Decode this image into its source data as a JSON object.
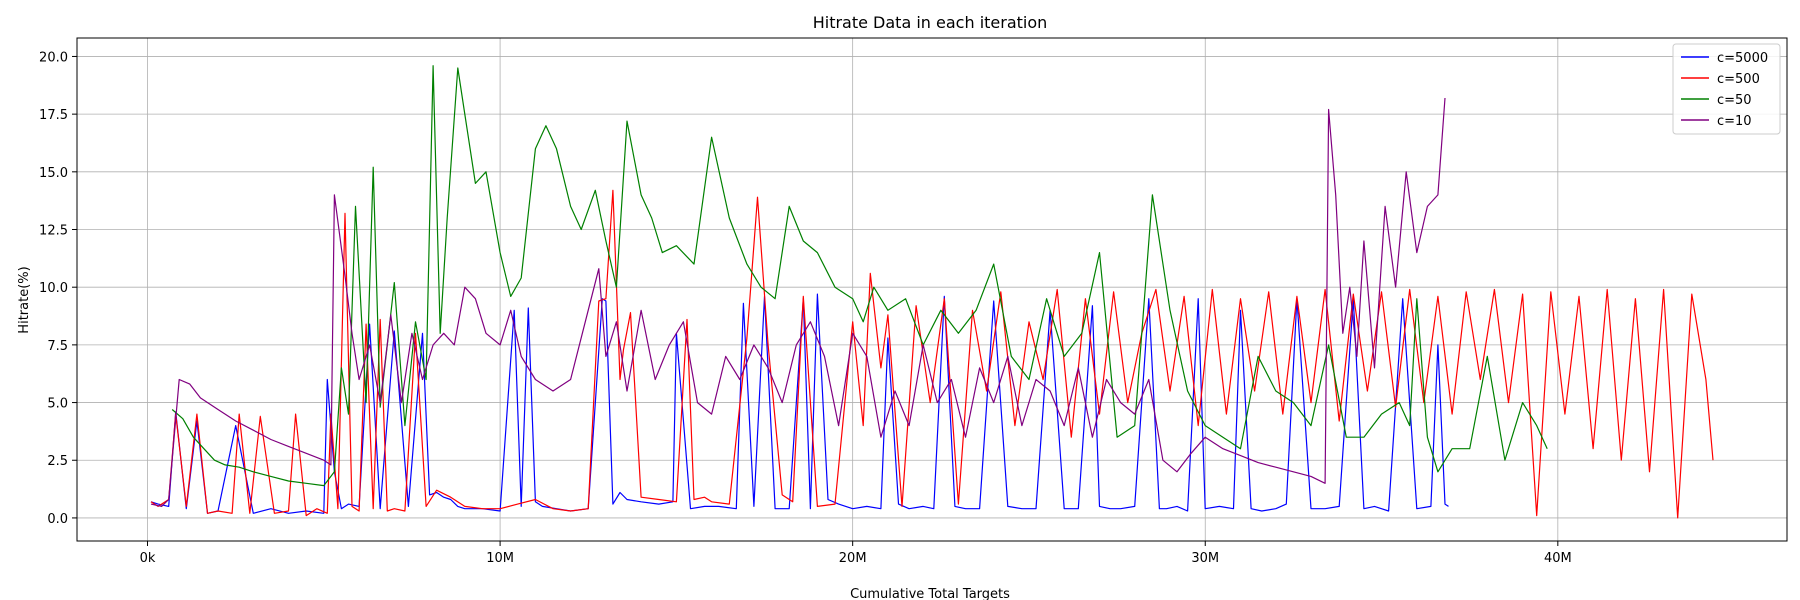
{
  "chart_data": {
    "type": "line",
    "title": "Hitrate Data in each iteration",
    "xlabel": "Cumulative Total Targets",
    "ylabel": "Hitrate(%)",
    "xlim": [
      -2.0,
      46.5
    ],
    "ylim": [
      -1.0,
      20.8
    ],
    "x_unit": "millions of targets",
    "x_ticks": [
      {
        "value": 0,
        "label": "0k"
      },
      {
        "value": 10,
        "label": "10M"
      },
      {
        "value": 20,
        "label": "20M"
      },
      {
        "value": 30,
        "label": "30M"
      },
      {
        "value": 40,
        "label": "40M"
      }
    ],
    "y_ticks": [
      {
        "value": 0,
        "label": "0.0"
      },
      {
        "value": 2.5,
        "label": "2.5"
      },
      {
        "value": 5,
        "label": "5.0"
      },
      {
        "value": 7.5,
        "label": "7.5"
      },
      {
        "value": 10,
        "label": "10.0"
      },
      {
        "value": 12.5,
        "label": "12.5"
      },
      {
        "value": 15,
        "label": "15.0"
      },
      {
        "value": 17.5,
        "label": "17.5"
      },
      {
        "value": 20,
        "label": "20.0"
      }
    ],
    "grid": true,
    "legend_position": "top-right",
    "series": [
      {
        "name": "c=5000",
        "color": "#0000ff",
        "x": [
          0.1,
          0.3,
          0.6,
          0.8,
          1.1,
          1.4,
          1.7,
          2.0,
          2.5,
          3.0,
          3.5,
          4.0,
          4.5,
          5.0,
          5.1,
          5.3,
          5.5,
          5.7,
          6.0,
          6.3,
          6.6,
          7.0,
          7.4,
          7.8,
          8.0,
          8.2,
          8.4,
          8.6,
          8.8,
          9.0,
          9.5,
          10.0,
          10.4,
          10.6,
          10.8,
          11.0,
          11.2,
          11.6,
          12.0,
          12.5,
          12.9,
          13.0,
          13.2,
          13.4,
          13.6,
          14.0,
          14.5,
          14.9,
          15.0,
          15.4,
          15.8,
          16.2,
          16.7,
          16.9,
          17.2,
          17.5,
          17.8,
          18.2,
          18.6,
          18.8,
          19.0,
          19.3,
          19.6,
          20.0,
          20.4,
          20.8,
          21.0,
          21.3,
          21.6,
          22.0,
          22.3,
          22.6,
          22.9,
          23.2,
          23.6,
          24.0,
          24.4,
          24.8,
          25.2,
          25.6,
          26.0,
          26.4,
          26.8,
          27.0,
          27.3,
          27.6,
          28.0,
          28.4,
          28.7,
          28.9,
          29.2,
          29.5,
          29.8,
          30.0,
          30.4,
          30.8,
          31.0,
          31.3,
          31.6,
          32.0,
          32.3,
          32.6,
          33.0,
          33.4,
          33.8,
          34.2,
          34.5,
          34.8,
          35.2,
          35.6,
          36.0,
          36.4,
          36.6,
          36.8,
          36.9
        ],
        "y": [
          0.7,
          0.6,
          0.5,
          4.6,
          0.4,
          4.2,
          0.2,
          0.3,
          4.0,
          0.2,
          0.4,
          0.2,
          0.3,
          0.2,
          6.0,
          2.0,
          0.4,
          0.6,
          0.5,
          8.4,
          0.4,
          8.1,
          0.5,
          8.0,
          1.0,
          1.1,
          0.9,
          0.8,
          0.5,
          0.4,
          0.4,
          0.3,
          9.0,
          0.5,
          9.1,
          0.7,
          0.5,
          0.4,
          0.3,
          0.4,
          9.5,
          9.4,
          0.6,
          1.1,
          0.8,
          0.7,
          0.6,
          0.7,
          8.0,
          0.4,
          0.5,
          0.5,
          0.4,
          9.3,
          0.5,
          9.6,
          0.4,
          0.4,
          9.5,
          0.4,
          9.7,
          0.8,
          0.6,
          0.4,
          0.5,
          0.4,
          7.8,
          0.6,
          0.4,
          0.5,
          0.4,
          9.6,
          0.5,
          0.4,
          0.4,
          9.4,
          0.5,
          0.4,
          0.4,
          9.0,
          0.4,
          0.4,
          9.2,
          0.5,
          0.4,
          0.4,
          0.5,
          9.5,
          0.4,
          0.4,
          0.5,
          0.3,
          9.5,
          0.4,
          0.5,
          0.4,
          9.0,
          0.4,
          0.3,
          0.4,
          0.6,
          9.5,
          0.4,
          0.4,
          0.5,
          9.5,
          0.4,
          0.5,
          0.3,
          9.5,
          0.4,
          0.5,
          7.5,
          0.6,
          0.5
        ]
      },
      {
        "name": "c=500",
        "color": "#ff0000",
        "x": [
          0.1,
          0.3,
          0.6,
          0.8,
          1.1,
          1.4,
          1.7,
          2.0,
          2.4,
          2.6,
          2.9,
          3.2,
          3.6,
          4.0,
          4.2,
          4.5,
          4.8,
          5.1,
          5.2,
          5.4,
          5.6,
          5.8,
          6.0,
          6.2,
          6.4,
          6.6,
          6.8,
          7.0,
          7.3,
          7.6,
          7.9,
          8.2,
          8.6,
          9.0,
          9.5,
          10.0,
          10.5,
          11.0,
          11.5,
          12.0,
          12.5,
          12.8,
          13.0,
          13.2,
          13.4,
          13.5,
          13.7,
          14.0,
          14.5,
          15.0,
          15.3,
          15.5,
          15.8,
          16.0,
          16.5,
          17.0,
          17.3,
          17.6,
          18.0,
          18.3,
          18.6,
          19.0,
          19.5,
          20.0,
          20.3,
          20.5,
          20.8,
          21.0,
          21.4,
          21.8,
          22.2,
          22.6,
          23.0,
          23.4,
          23.8,
          24.2,
          24.6,
          25.0,
          25.4,
          25.8,
          26.2,
          26.6,
          27.0,
          27.4,
          27.8,
          28.2,
          28.6,
          29.0,
          29.4,
          29.8,
          30.2,
          30.6,
          31.0,
          31.4,
          31.8,
          32.2,
          32.6,
          33.0,
          33.4,
          33.8,
          34.2,
          34.6,
          35.0,
          35.4,
          35.8,
          36.2,
          36.6,
          37.0,
          37.4,
          37.8,
          38.2,
          38.6,
          39.0,
          39.4,
          39.8,
          40.2,
          40.6,
          41.0,
          41.4,
          41.8,
          42.2,
          42.6,
          43.0,
          43.4,
          43.8,
          44.2,
          44.4
        ],
        "y": [
          0.7,
          0.5,
          0.8,
          4.5,
          0.5,
          4.5,
          0.2,
          0.3,
          0.2,
          4.5,
          0.2,
          4.4,
          0.2,
          0.3,
          4.5,
          0.1,
          0.4,
          0.2,
          4.5,
          0.4,
          13.2,
          0.5,
          0.3,
          8.4,
          0.4,
          8.6,
          0.3,
          0.4,
          0.3,
          8.0,
          0.5,
          1.2,
          0.9,
          0.5,
          0.4,
          0.4,
          0.6,
          0.8,
          0.4,
          0.3,
          0.4,
          9.4,
          9.5,
          14.2,
          6.0,
          7.3,
          8.9,
          0.9,
          0.8,
          0.7,
          8.6,
          0.8,
          0.9,
          0.7,
          0.6,
          7.8,
          13.9,
          7.5,
          1.0,
          0.7,
          9.6,
          0.5,
          0.6,
          8.5,
          4.0,
          10.6,
          6.5,
          8.8,
          0.5,
          9.2,
          5.0,
          9.5,
          0.6,
          9.0,
          5.5,
          9.8,
          4.0,
          8.5,
          6.0,
          9.9,
          3.5,
          9.5,
          4.5,
          9.8,
          5.0,
          8.0,
          9.9,
          5.5,
          9.6,
          4.0,
          9.9,
          4.5,
          9.5,
          5.5,
          9.8,
          4.5,
          9.6,
          5.0,
          9.9,
          4.2,
          9.7,
          5.5,
          9.8,
          4.8,
          9.9,
          5.0,
          9.6,
          4.5,
          9.8,
          6.0,
          9.9,
          5.0,
          9.7,
          0.1,
          9.8,
          4.5,
          9.6,
          3.0,
          9.9,
          2.5,
          9.5,
          2.0,
          9.9,
          0.0,
          9.7,
          6.0,
          2.5
        ]
      },
      {
        "name": "c=50",
        "color": "#008000",
        "x": [
          0.7,
          1.0,
          1.3,
          1.6,
          1.9,
          2.2,
          2.6,
          3.0,
          3.5,
          4.0,
          4.5,
          5.0,
          5.3,
          5.5,
          5.7,
          5.9,
          6.2,
          6.4,
          6.6,
          6.8,
          7.0,
          7.3,
          7.6,
          7.9,
          8.1,
          8.3,
          8.5,
          8.8,
          9.0,
          9.3,
          9.6,
          10.0,
          10.3,
          10.6,
          11.0,
          11.3,
          11.6,
          12.0,
          12.3,
          12.7,
          13.0,
          13.3,
          13.6,
          14.0,
          14.3,
          14.6,
          15.0,
          15.5,
          16.0,
          16.5,
          17.0,
          17.4,
          17.8,
          18.2,
          18.6,
          19.0,
          19.5,
          20.0,
          20.3,
          20.6,
          21.0,
          21.5,
          22.0,
          22.5,
          23.0,
          23.5,
          24.0,
          24.5,
          25.0,
          25.5,
          26.0,
          26.5,
          27.0,
          27.5,
          28.0,
          28.5,
          29.0,
          29.5,
          30.0,
          30.5,
          31.0,
          31.5,
          32.0,
          32.5,
          33.0,
          33.5,
          34.0,
          34.5,
          35.0,
          35.5,
          35.8,
          36.0,
          36.3,
          36.6,
          37.0,
          37.5,
          38.0,
          38.5,
          39.0,
          39.4,
          39.7
        ],
        "y": [
          4.7,
          4.3,
          3.5,
          3.0,
          2.5,
          2.3,
          2.2,
          2.0,
          1.8,
          1.6,
          1.5,
          1.4,
          2.0,
          6.5,
          4.5,
          13.5,
          5.0,
          15.2,
          4.8,
          7.5,
          10.2,
          4.0,
          8.5,
          6.0,
          19.6,
          8.0,
          13.0,
          19.5,
          17.5,
          14.5,
          15.0,
          11.5,
          9.6,
          10.4,
          16.0,
          17.0,
          16.0,
          13.5,
          12.5,
          14.2,
          12.0,
          10.0,
          17.2,
          14.0,
          13.0,
          11.5,
          11.8,
          11.0,
          16.5,
          13.0,
          11.0,
          10.0,
          9.5,
          13.5,
          12.0,
          11.5,
          10.0,
          9.5,
          8.5,
          10.0,
          9.0,
          9.5,
          7.5,
          9.0,
          8.0,
          9.0,
          11.0,
          7.0,
          6.0,
          9.5,
          7.0,
          8.0,
          11.5,
          3.5,
          4.0,
          14.0,
          9.0,
          5.5,
          4.0,
          3.5,
          3.0,
          7.0,
          5.5,
          5.0,
          4.0,
          7.5,
          3.5,
          3.5,
          4.5,
          5.0,
          4.0,
          9.5,
          3.5,
          2.0,
          3.0,
          3.0,
          7.0,
          2.5,
          5.0,
          4.0,
          3.0
        ]
      },
      {
        "name": "c=10",
        "color": "#800080",
        "x": [
          0.1,
          0.4,
          0.6,
          0.9,
          1.2,
          1.5,
          2.0,
          2.5,
          3.0,
          3.5,
          4.0,
          4.5,
          5.0,
          5.2,
          5.3,
          5.6,
          5.8,
          6.0,
          6.3,
          6.6,
          6.9,
          7.2,
          7.5,
          7.8,
          8.1,
          8.4,
          8.7,
          9.0,
          9.3,
          9.6,
          10.0,
          10.3,
          10.6,
          11.0,
          11.5,
          12.0,
          12.5,
          12.8,
          13.0,
          13.3,
          13.6,
          14.0,
          14.4,
          14.8,
          15.2,
          15.6,
          16.0,
          16.4,
          16.8,
          17.2,
          17.6,
          18.0,
          18.4,
          18.8,
          19.2,
          19.6,
          20.0,
          20.4,
          20.8,
          21.2,
          21.6,
          22.0,
          22.4,
          22.8,
          23.2,
          23.6,
          24.0,
          24.4,
          24.8,
          25.2,
          25.6,
          26.0,
          26.4,
          26.8,
          27.2,
          27.6,
          28.0,
          28.4,
          28.8,
          29.2,
          29.6,
          30.0,
          30.5,
          31.0,
          31.5,
          32.0,
          32.5,
          33.0,
          33.4,
          33.5,
          33.7,
          33.9,
          34.1,
          34.3,
          34.5,
          34.8,
          35.1,
          35.4,
          35.7,
          36.0,
          36.3,
          36.6,
          36.8
        ],
        "y": [
          0.6,
          0.5,
          0.8,
          6.0,
          5.8,
          5.2,
          4.7,
          4.2,
          3.8,
          3.4,
          3.1,
          2.8,
          2.5,
          2.3,
          14.0,
          10.5,
          8.0,
          6.0,
          7.5,
          5.0,
          8.8,
          5.0,
          8.0,
          6.0,
          7.5,
          8.0,
          7.5,
          10.0,
          9.5,
          8.0,
          7.5,
          9.0,
          7.0,
          6.0,
          5.5,
          6.0,
          9.0,
          10.8,
          7.0,
          8.5,
          5.5,
          9.0,
          6.0,
          7.5,
          8.5,
          5.0,
          4.5,
          7.0,
          6.0,
          7.5,
          6.5,
          5.0,
          7.5,
          8.5,
          7.0,
          4.0,
          8.0,
          7.0,
          3.5,
          5.5,
          4.0,
          7.5,
          5.0,
          6.0,
          3.5,
          6.5,
          5.0,
          7.0,
          4.0,
          6.0,
          5.5,
          4.0,
          6.5,
          3.5,
          6.0,
          5.0,
          4.5,
          6.0,
          2.5,
          2.0,
          2.8,
          3.5,
          3.0,
          2.7,
          2.4,
          2.2,
          2.0,
          1.8,
          1.5,
          17.7,
          14.0,
          8.0,
          10.0,
          7.0,
          12.0,
          6.5,
          13.5,
          10.0,
          15.0,
          11.5,
          13.5,
          14.0,
          18.2
        ]
      }
    ]
  }
}
